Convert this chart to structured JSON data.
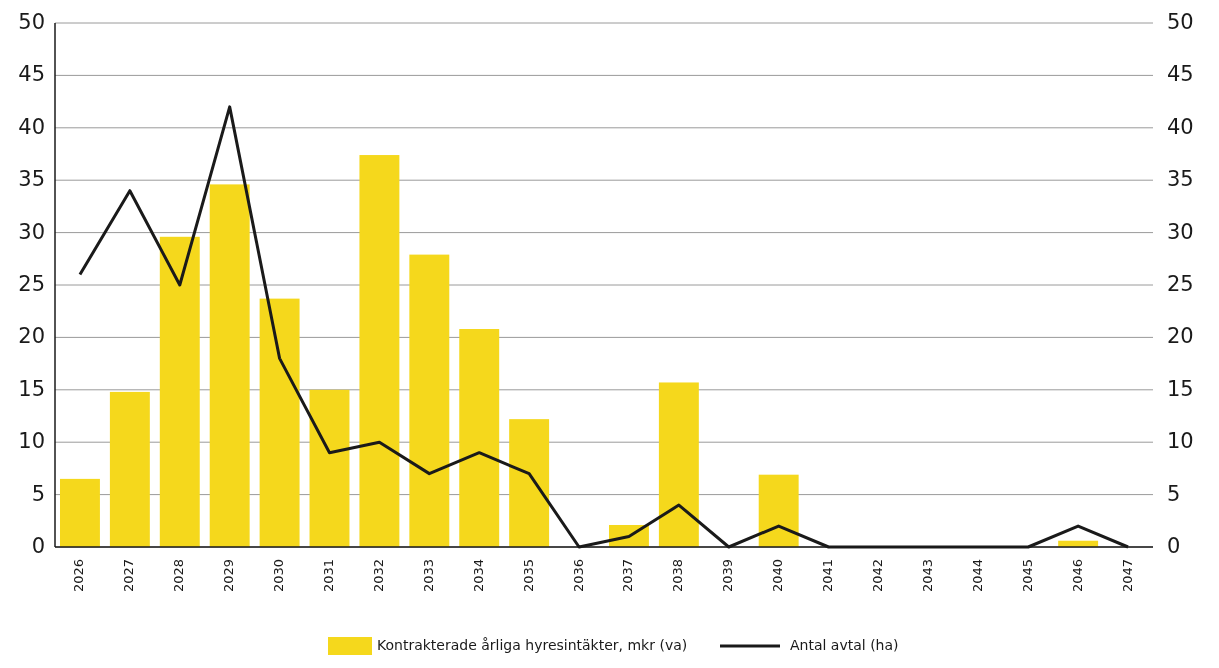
{
  "chart_data": {
    "type": "bar",
    "categories": [
      "2026",
      "2027",
      "2028",
      "2029",
      "2030",
      "2031",
      "2032",
      "2033",
      "2034",
      "2035",
      "2036",
      "2037",
      "2038",
      "2039",
      "2040",
      "2041",
      "2042",
      "2043",
      "2044",
      "2045",
      "2046",
      "2047"
    ],
    "series": [
      {
        "name": "Kontrakterade årliga hyresintäkter, mkr (va)",
        "color": "#f5d81c",
        "values": [
          6.5,
          14.8,
          29.6,
          34.6,
          23.7,
          15.0,
          37.4,
          27.9,
          20.8,
          12.2,
          0,
          2.1,
          15.7,
          0,
          6.9,
          0,
          0,
          0,
          0,
          0,
          0.6,
          0
        ]
      },
      {
        "name": "Antal avtal (ha)",
        "type": "line",
        "axis": "y2",
        "color": "#1a1a1a",
        "values": [
          26,
          34,
          25,
          42,
          18,
          9,
          10,
          7,
          9,
          7,
          0,
          1,
          4,
          0,
          2,
          0,
          0,
          0,
          0,
          0,
          2,
          0
        ]
      }
    ],
    "ylim": [
      0,
      50
    ],
    "yticks": [
      0,
      5,
      10,
      15,
      20,
      25,
      30,
      35,
      40,
      45,
      50
    ],
    "y2lim": [
      0,
      50
    ],
    "y2ticks": [
      0,
      5,
      10,
      15,
      20,
      25,
      30,
      35,
      40,
      45,
      50
    ],
    "grid": "y",
    "legend": "bottom",
    "line_style": "solid",
    "marker": "none"
  }
}
